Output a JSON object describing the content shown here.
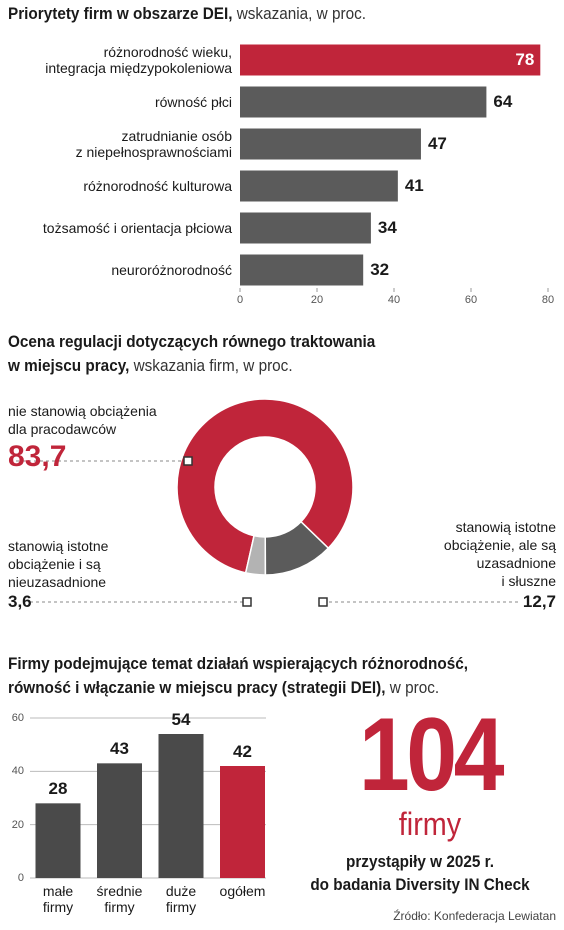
{
  "chart_data": [
    {
      "type": "bar",
      "orientation": "horizontal",
      "title": "Priorytety firm w obszarze DEI,",
      "subtitle": "wskazania, w proc.",
      "categories": [
        "różnorodność wieku,\nintegracja międzypokoleniowa",
        "równość płci",
        "zatrudnianie osób\nz niepełnosprawnościami",
        "różnorodność kulturowa",
        "tożsamość i orientacja płciowa",
        "neuroróżnorodność"
      ],
      "values": [
        78,
        64,
        47,
        41,
        34,
        32
      ],
      "colors": [
        "#c0253a",
        "#5b5b5b",
        "#5b5b5b",
        "#5b5b5b",
        "#5b5b5b",
        "#5b5b5b"
      ],
      "xlim": [
        0,
        80
      ],
      "xticks": [
        0,
        20,
        40,
        60,
        80
      ]
    },
    {
      "type": "pie",
      "donut": true,
      "title": "Ocena regulacji dotyczących równego traktowania\nw miejscu pracy,",
      "subtitle": "wskazania firm, w proc.",
      "categories": [
        "nie stanowią obciążenia\ndla pracodawców",
        "stanowią istotne\nobciążenie i są\nnieuzasadnione",
        "stanowią istotne\nobciążenie, ale są\nuzasadnione\ni słuszne"
      ],
      "values": [
        83.7,
        3.6,
        12.7
      ],
      "value_labels": [
        "83,7",
        "3,6",
        "12,7"
      ],
      "colors": [
        "#c0253a",
        "#b3b3b3",
        "#5b5b5b"
      ]
    },
    {
      "type": "bar",
      "title": "Firmy podejmujące temat działań wspierających różnorodność,\nrówność i włączanie w miejscu pracy (strategii DEI),",
      "subtitle": "w proc.",
      "categories": [
        "małe\nfirmy",
        "średnie\nfirmy",
        "duże\nfirmy",
        "ogółem"
      ],
      "values": [
        28,
        43,
        54,
        42
      ],
      "colors": [
        "#4a4a4a",
        "#4a4a4a",
        "#4a4a4a",
        "#c0253a"
      ],
      "ylim": [
        0,
        60
      ],
      "yticks": [
        0,
        20,
        40,
        60
      ],
      "grid": true
    }
  ],
  "highlight": {
    "number": 104,
    "unit": "firmy",
    "text": "przystąpiły w 2025 r.\ndo badania Diversity IN Check"
  },
  "source": "Źródło: Konfederacja Lewiatan"
}
